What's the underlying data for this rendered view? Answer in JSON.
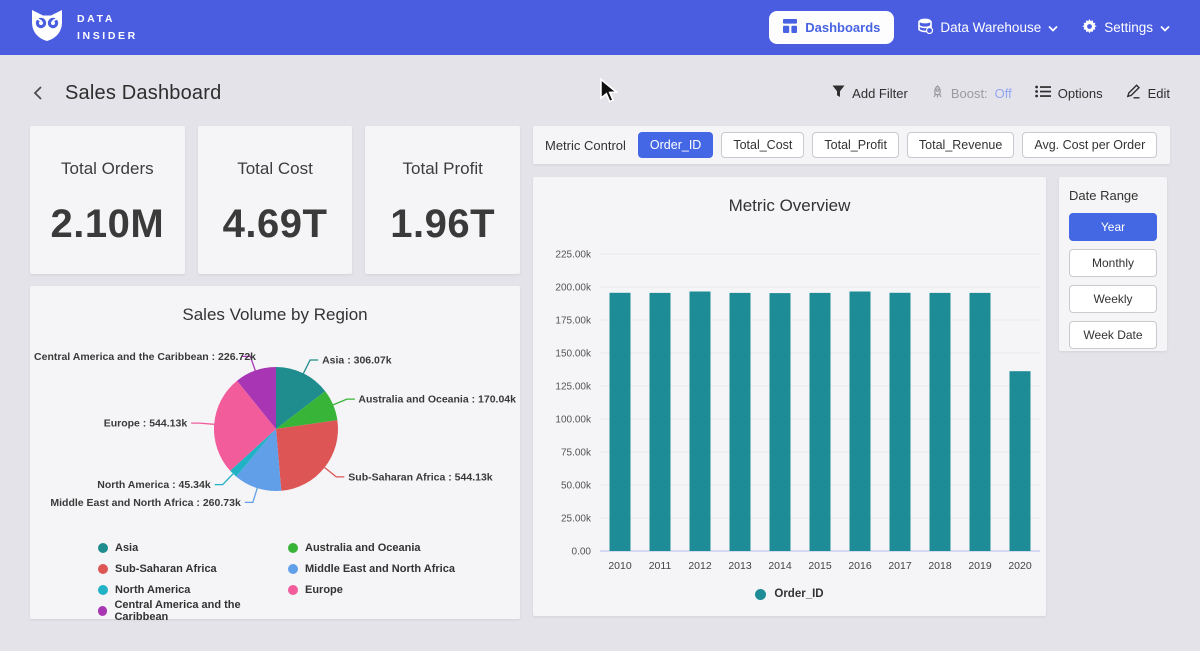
{
  "navbar": {
    "logo_line1": "DATA",
    "logo_line2": "INSIDER",
    "dashboards_label": "Dashboards",
    "data_warehouse_label": "Data Warehouse",
    "settings_label": "Settings"
  },
  "header": {
    "title": "Sales Dashboard",
    "add_filter_label": "Add Filter",
    "boost_label": "Boost:",
    "boost_value": "Off",
    "options_label": "Options",
    "edit_label": "Edit"
  },
  "kpis": [
    {
      "label": "Total Orders",
      "value": "2.10M"
    },
    {
      "label": "Total Cost",
      "value": "4.69T"
    },
    {
      "label": "Total Profit",
      "value": "1.96T"
    }
  ],
  "metric_control": {
    "label": "Metric Control",
    "options": [
      {
        "label": "Order_ID",
        "selected": true
      },
      {
        "label": "Total_Cost",
        "selected": false
      },
      {
        "label": "Total_Profit",
        "selected": false
      },
      {
        "label": "Total_Revenue",
        "selected": false
      },
      {
        "label": "Avg. Cost per Order",
        "selected": false
      }
    ]
  },
  "date_range": {
    "label": "Date Range",
    "options": [
      {
        "label": "Year",
        "selected": true
      },
      {
        "label": "Monthly",
        "selected": false
      },
      {
        "label": "Weekly",
        "selected": false
      },
      {
        "label": "Week Date",
        "selected": false
      }
    ]
  },
  "colors": {
    "navbar": "#4a5de1",
    "accent": "#4467e6",
    "boost_off": "#93a7f2",
    "bar_teal": "#1e8c96",
    "page_bg": "#e4e3e9",
    "card_bg": "#f5f4f6"
  },
  "chart_data": [
    {
      "type": "pie",
      "title": "Sales Volume by Region",
      "value_suffix": "k",
      "slices": [
        {
          "label": "Asia",
          "value": 306.07,
          "color": "#1f8d8d"
        },
        {
          "label": "Australia and Oceania",
          "value": 170.04,
          "color": "#38b438"
        },
        {
          "label": "Sub-Saharan Africa",
          "value": 544.13,
          "color": "#dd5555"
        },
        {
          "label": "Middle East and North Africa",
          "value": 260.73,
          "color": "#619fe8"
        },
        {
          "label": "North America",
          "value": 45.34,
          "color": "#21b2c6"
        },
        {
          "label": "Europe",
          "value": 544.13,
          "color": "#f25c9b"
        },
        {
          "label": "Central America and the Caribbean",
          "value": 226.72,
          "color": "#a836b4"
        }
      ],
      "legend_columns": [
        [
          "Asia",
          "Sub-Saharan Africa",
          "North America",
          "Central America and the Caribbean"
        ],
        [
          "Australia and Oceania",
          "Middle East and North Africa",
          "Europe"
        ]
      ],
      "legend_position": "bottom"
    },
    {
      "type": "bar",
      "title": "Metric Overview",
      "categories": [
        "2010",
        "2011",
        "2012",
        "2013",
        "2014",
        "2015",
        "2016",
        "2017",
        "2018",
        "2019",
        "2020"
      ],
      "series": [
        {
          "name": "Order_ID",
          "color": "#1e8c96",
          "values": [
            195600,
            195500,
            196600,
            195500,
            195400,
            195500,
            196600,
            195600,
            195500,
            195500,
            136200
          ]
        }
      ],
      "ylim": [
        0,
        225000
      ],
      "ytick_step": 25000,
      "ytick_labels": [
        "0.00",
        "25.00k",
        "50.00k",
        "75.00k",
        "100.00k",
        "125.00k",
        "150.00k",
        "175.00k",
        "200.00k",
        "225.00k"
      ],
      "grid": true,
      "legend_position": "bottom"
    }
  ]
}
